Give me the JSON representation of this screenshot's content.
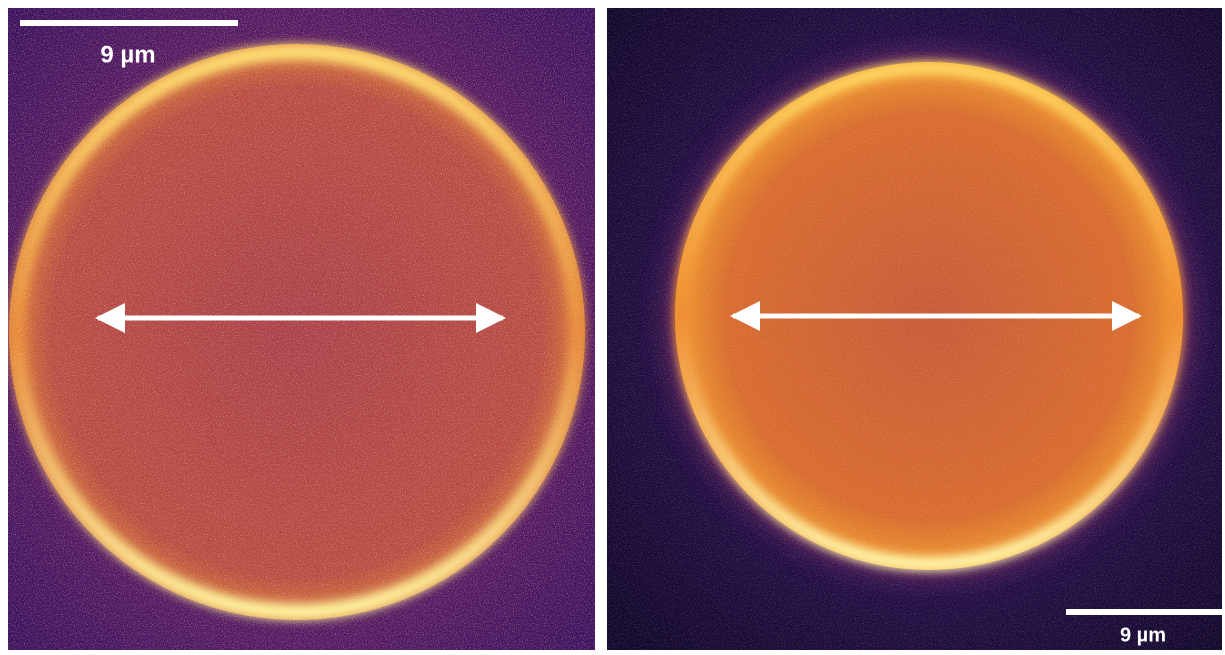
{
  "panels": [
    {
      "scale_bar_label": "9 µm"
    },
    {
      "scale_bar_label": "9 µm"
    }
  ]
}
